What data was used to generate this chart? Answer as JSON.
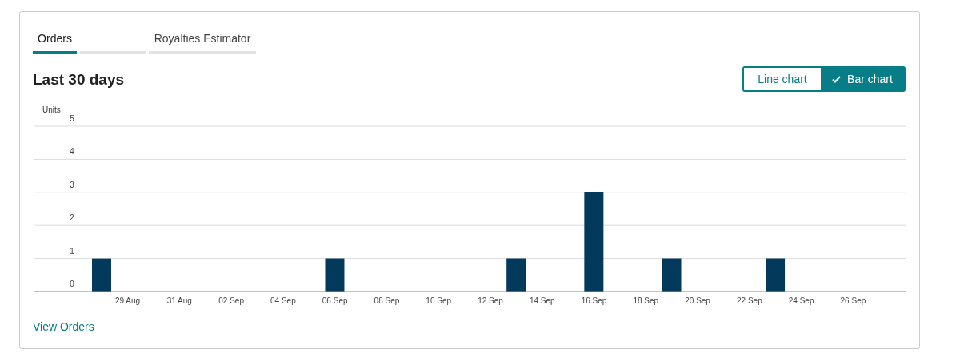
{
  "chart_data": {
    "type": "bar",
    "title": "Last 30 days",
    "ylabel": "Units",
    "categories": [
      null,
      "29 Aug",
      null,
      "31 Aug",
      null,
      "02 Sep",
      null,
      "04 Sep",
      null,
      "06 Sep",
      null,
      "08 Sep",
      null,
      "10 Sep",
      null,
      "12 Sep",
      null,
      "14 Sep",
      null,
      "16 Sep",
      null,
      "18 Sep",
      null,
      "20 Sep",
      null,
      "22 Sep",
      null,
      "24 Sep",
      null,
      "26 Sep",
      null
    ],
    "values": [
      1,
      0,
      0,
      0,
      0,
      0,
      0,
      0,
      0,
      1,
      0,
      0,
      0,
      0,
      0,
      0,
      1,
      0,
      0,
      3,
      0,
      0,
      1,
      0,
      0,
      0,
      1,
      0,
      0,
      0,
      0
    ],
    "color": "#033a5c",
    "ylim": [
      0,
      5
    ],
    "yticks": [
      0,
      1,
      2,
      3,
      4,
      5
    ],
    "grid": "y",
    "annotations": [
      "Orders",
      "Royalties Estimator",
      "Line chart",
      "Bar chart",
      "View Orders"
    ]
  }
}
